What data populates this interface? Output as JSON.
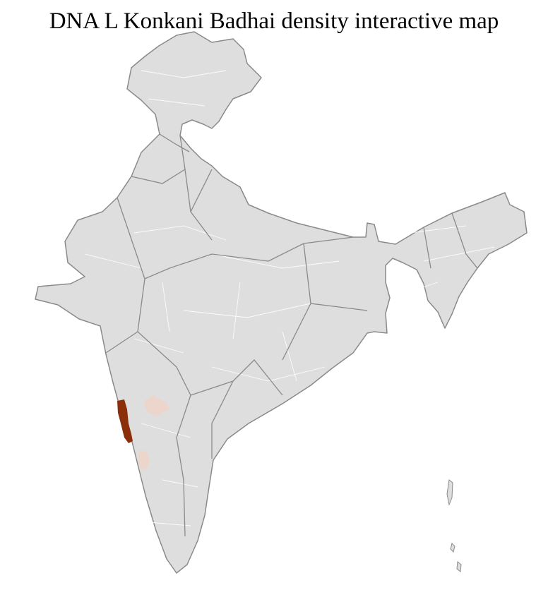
{
  "title": "DNA L Konkani Badhai density interactive map",
  "map": {
    "region": "India",
    "unit": "districts",
    "colors": {
      "base": "#dedede",
      "state_border": "#8a8a8a",
      "district_border": "#ffffff",
      "high_density": "#8b2e0a",
      "low_density": "#ecd6cc"
    },
    "highlighted_districts": [
      {
        "level": "high",
        "location": "Konkan coast"
      },
      {
        "level": "low",
        "location": "interior Maharashtra"
      },
      {
        "level": "low",
        "location": "coastal Karnataka"
      }
    ]
  }
}
